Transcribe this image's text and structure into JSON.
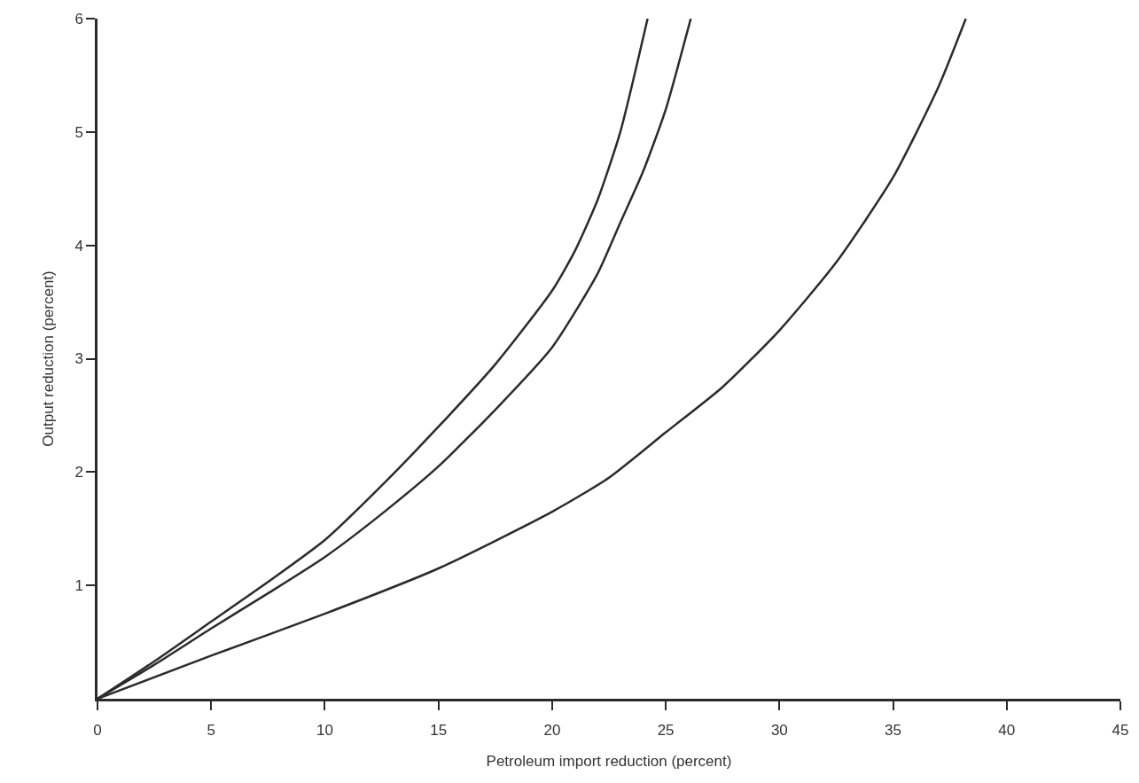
{
  "chart_data": {
    "type": "line",
    "xlabel": "Petroleum import reduction (percent)",
    "ylabel": "Output reduction (percent)",
    "xlim": [
      0,
      45
    ],
    "ylim": [
      0,
      6
    ],
    "xticks": [
      0,
      5,
      10,
      15,
      20,
      25,
      30,
      35,
      40,
      45
    ],
    "yticks": [
      1,
      2,
      3,
      4,
      5,
      6
    ],
    "grid": false,
    "marker": "none",
    "line_style": "solid",
    "series": [
      {
        "color": "#2b2b2b",
        "x": [
          0,
          2.5,
          5,
          7.5,
          10,
          12.5,
          15,
          17.5,
          20,
          21,
          22,
          23,
          24.2
        ],
        "values": [
          0,
          0.33,
          0.68,
          1.03,
          1.4,
          1.88,
          2.4,
          2.95,
          3.6,
          3.95,
          4.4,
          5.0,
          6
        ]
      },
      {
        "color": "#2b2b2b",
        "x": [
          0,
          2.5,
          5,
          7.5,
          10,
          12.5,
          15,
          17.5,
          20,
          22,
          23,
          24,
          25,
          26.1
        ],
        "values": [
          0,
          0.3,
          0.62,
          0.93,
          1.25,
          1.63,
          2.05,
          2.55,
          3.1,
          3.75,
          4.2,
          4.65,
          5.2,
          6
        ]
      },
      {
        "color": "#2b2b2b",
        "x": [
          0,
          5,
          10,
          15,
          20,
          22.5,
          25,
          27.5,
          30,
          32.5,
          35,
          37,
          38.2
        ],
        "values": [
          0,
          0.38,
          0.75,
          1.15,
          1.65,
          1.95,
          2.35,
          2.75,
          3.25,
          3.85,
          4.6,
          5.4,
          6
        ]
      }
    ]
  }
}
